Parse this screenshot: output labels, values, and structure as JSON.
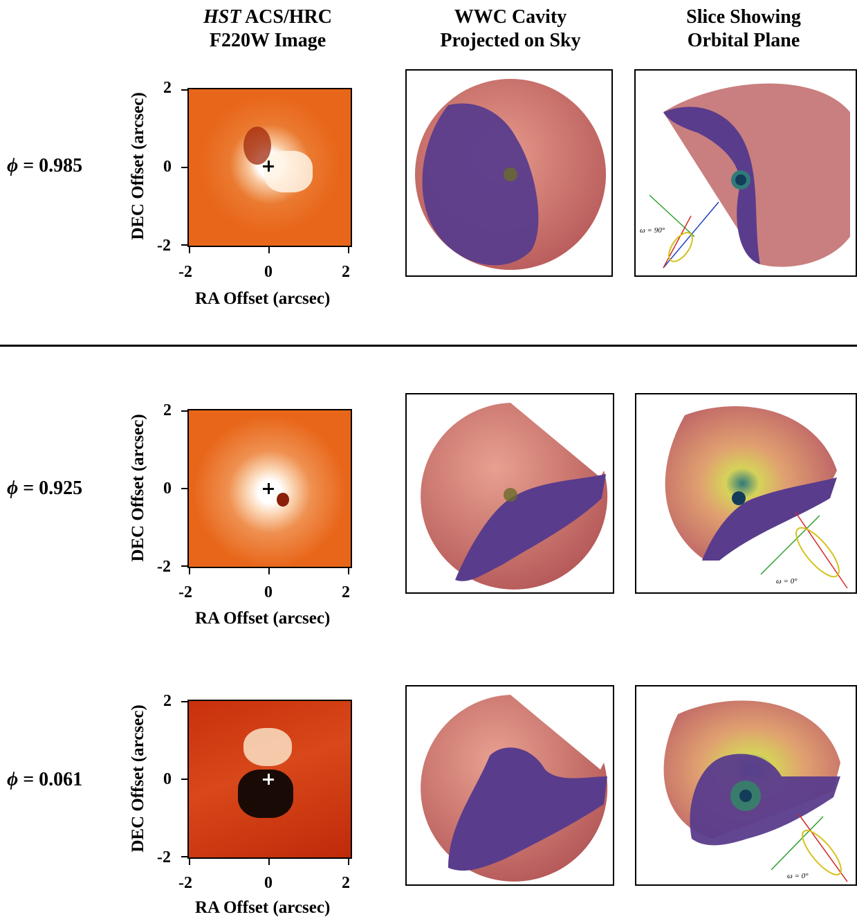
{
  "headers": {
    "col1_italic": "HST",
    "col1_rest": " ACS/HRC",
    "col1_line2": "F220W Image",
    "col2_line1": "WWC Cavity",
    "col2_line2": "Projected on Sky",
    "col3_line1": "Slice Showing",
    "col3_line2": "Orbital Plane"
  },
  "rows": [
    {
      "phi_symbol": "ϕ",
      "phi_text": " = 0.985",
      "ylabel": "DEC Offset (arcsec)",
      "xlabel": "RA Offset (arcsec)",
      "yticks": [
        "2",
        "0",
        "-2"
      ],
      "xticks": [
        "-2",
        "0",
        "2"
      ],
      "omega_label": "ω = 90°"
    },
    {
      "phi_symbol": "ϕ",
      "phi_text": " = 0.925",
      "ylabel": "DEC Offset (arcsec)",
      "xlabel": "RA Offset (arcsec)",
      "yticks": [
        "2",
        "0",
        "-2"
      ],
      "xticks": [
        "-2",
        "0",
        "2"
      ],
      "omega_label": "ω = 0°"
    },
    {
      "phi_symbol": "ϕ",
      "phi_text": " = 0.061",
      "ylabel": "DEC Offset (arcsec)",
      "xlabel": "RA Offset (arcsec)",
      "yticks": [
        "2",
        "0",
        "-2"
      ],
      "xticks": [
        "-2",
        "0",
        "2"
      ],
      "omega_label": "ω = 0°"
    }
  ],
  "colors": {
    "image_orange": "#e8661a",
    "shell_pink": "#c86a6a",
    "cavity_purple": "#5a3c8c"
  }
}
